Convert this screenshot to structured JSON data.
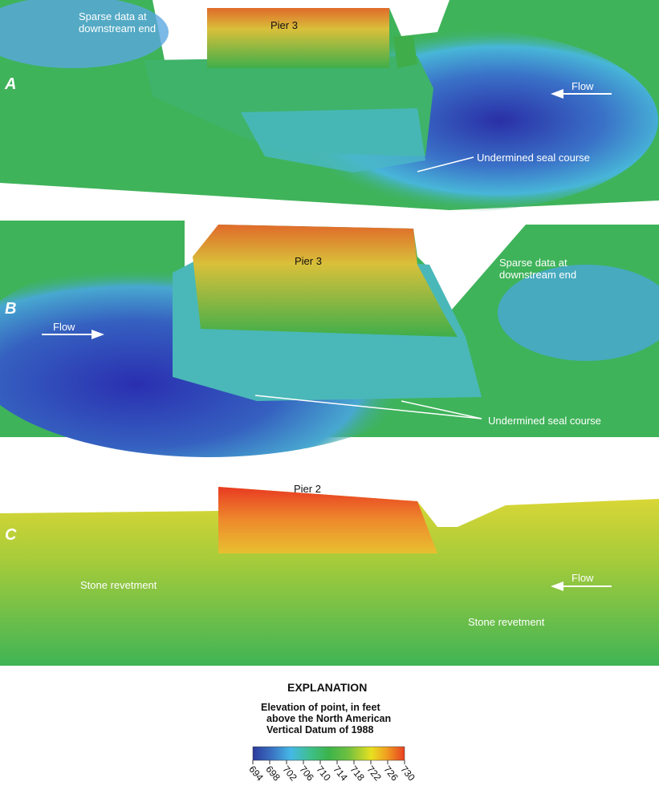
{
  "panels": [
    {
      "letter": "A",
      "pier": "Pier 3",
      "labels": {
        "sparse": "Sparse data at downstream end",
        "flow": "Flow",
        "seal": "Undermined seal course"
      }
    },
    {
      "letter": "B",
      "pier": "Pier 3",
      "labels": {
        "sparse": "Sparse data at downstream end",
        "flow": "Flow",
        "seal": "Undermined seal course"
      }
    },
    {
      "letter": "C",
      "pier": "Pier 2",
      "labels": {
        "stone1": "Stone revetment",
        "stone2": "Stone revetment",
        "flow": "Flow"
      }
    }
  ],
  "explanation": {
    "title": "EXPLANATION",
    "line1": "Elevation of point, in feet",
    "line2": "above the North American",
    "line3": "Vertical Datum of 1988",
    "ticks": [
      "694",
      "698",
      "702",
      "706",
      "710",
      "714",
      "718",
      "722",
      "726",
      "730"
    ],
    "colors": [
      "#2b3a9c",
      "#3a6fc0",
      "#45b8e6",
      "#3fbf8a",
      "#3cb34a",
      "#70c040",
      "#e8e020",
      "#f0a020",
      "#e84020"
    ]
  }
}
